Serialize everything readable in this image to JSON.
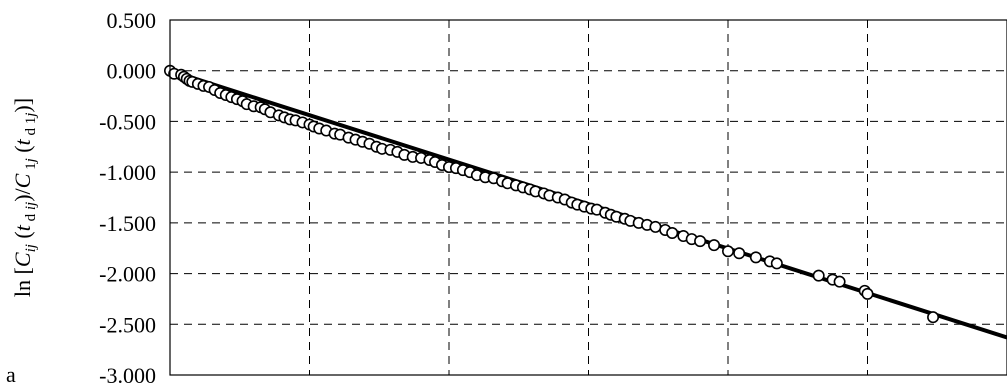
{
  "chart_data": {
    "type": "scatter",
    "panel_label": "a",
    "ylabel_parts": [
      "ln [",
      "C",
      "ij",
      " (",
      "t",
      " d ",
      "ij",
      ")/",
      "C",
      " 1",
      "j",
      " (",
      "t",
      " d 1",
      "j",
      ")]"
    ],
    "ylim": [
      -3.0,
      0.5
    ],
    "y_ticks": [
      0.5,
      0.0,
      -0.5,
      -1.0,
      -1.5,
      -2.0,
      -2.5,
      -3.0
    ],
    "y_tick_labels": [
      "0.500",
      "0.000",
      "-0.500",
      "-1.000",
      "-1.500",
      "-2.000",
      "-2.500",
      "-3.000"
    ],
    "xlim": [
      0,
      6
    ],
    "x_gridlines": [
      1,
      2,
      3,
      4,
      5
    ],
    "grid": true,
    "colors": {
      "line": "#000000",
      "marker_fill": "#ffffff",
      "marker_edge": "#000000",
      "grid": "#000000"
    },
    "series": [
      {
        "type": "line",
        "x": [
          0,
          6
        ],
        "y": [
          0.0,
          -2.63
        ]
      },
      {
        "type": "scatter",
        "x": [
          0.0,
          0.03,
          0.08,
          0.1,
          0.12,
          0.14,
          0.16,
          0.2,
          0.24,
          0.28,
          0.32,
          0.36,
          0.4,
          0.44,
          0.48,
          0.52,
          0.55,
          0.6,
          0.65,
          0.68,
          0.72,
          0.78,
          0.82,
          0.86,
          0.9,
          0.95,
          1.0,
          1.03,
          1.07,
          1.12,
          1.18,
          1.22,
          1.28,
          1.33,
          1.38,
          1.43,
          1.48,
          1.52,
          1.58,
          1.63,
          1.68,
          1.74,
          1.8,
          1.86,
          1.9,
          1.95,
          2.0,
          2.05,
          2.1,
          2.15,
          2.2,
          2.26,
          2.32,
          2.38,
          2.42,
          2.48,
          2.53,
          2.58,
          2.62,
          2.68,
          2.72,
          2.78,
          2.83,
          2.88,
          2.92,
          2.97,
          3.02,
          3.06,
          3.12,
          3.16,
          3.2,
          3.26,
          3.3,
          3.36,
          3.42,
          3.48,
          3.55,
          3.6,
          3.68,
          3.74,
          3.8,
          3.9,
          4.0,
          4.08,
          4.2,
          4.3,
          4.35,
          4.65,
          4.75,
          4.8,
          4.98,
          5.0,
          5.47
        ],
        "y": [
          0.0,
          -0.03,
          -0.04,
          -0.06,
          -0.08,
          -0.1,
          -0.11,
          -0.13,
          -0.15,
          -0.16,
          -0.19,
          -0.22,
          -0.24,
          -0.26,
          -0.28,
          -0.3,
          -0.33,
          -0.35,
          -0.36,
          -0.38,
          -0.41,
          -0.44,
          -0.46,
          -0.48,
          -0.49,
          -0.51,
          -0.53,
          -0.55,
          -0.57,
          -0.59,
          -0.62,
          -0.63,
          -0.66,
          -0.68,
          -0.7,
          -0.72,
          -0.75,
          -0.77,
          -0.78,
          -0.8,
          -0.83,
          -0.85,
          -0.86,
          -0.88,
          -0.9,
          -0.93,
          -0.95,
          -0.96,
          -0.98,
          -1.0,
          -1.03,
          -1.05,
          -1.06,
          -1.09,
          -1.11,
          -1.13,
          -1.15,
          -1.17,
          -1.19,
          -1.21,
          -1.23,
          -1.25,
          -1.27,
          -1.3,
          -1.32,
          -1.34,
          -1.36,
          -1.37,
          -1.4,
          -1.42,
          -1.44,
          -1.46,
          -1.48,
          -1.5,
          -1.52,
          -1.54,
          -1.57,
          -1.6,
          -1.63,
          -1.66,
          -1.68,
          -1.72,
          -1.78,
          -1.8,
          -1.84,
          -1.88,
          -1.9,
          -2.02,
          -2.06,
          -2.08,
          -2.17,
          -2.2,
          -2.43
        ]
      }
    ]
  }
}
